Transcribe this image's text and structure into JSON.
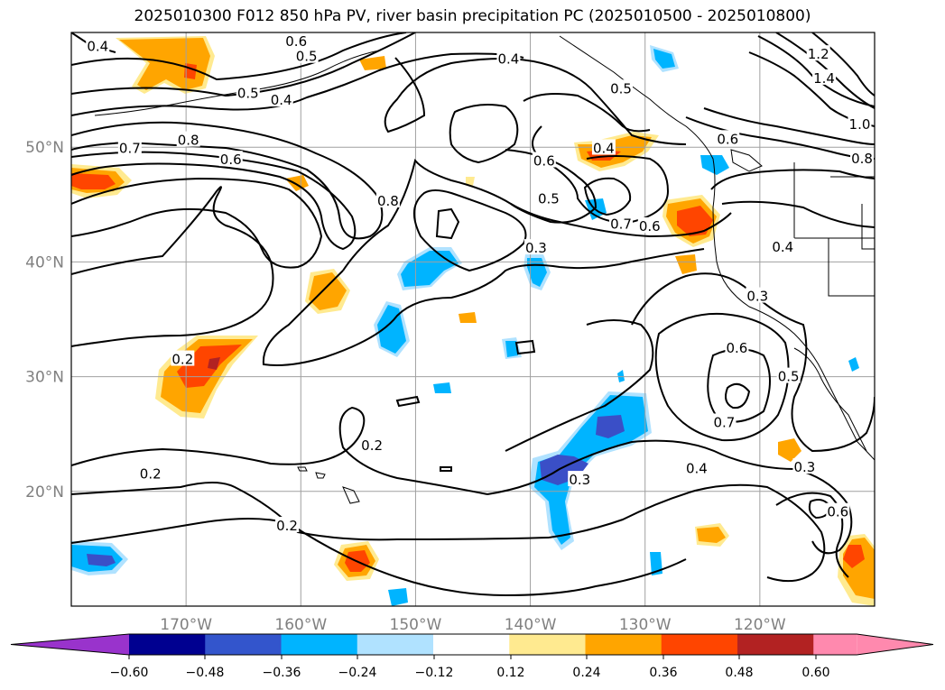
{
  "title": "2025010300 F012 850 hPa PV, river basin precipitation PC (2025010500 - 2025010800)",
  "map": {
    "projection": "equirectangular",
    "extent": {
      "lon_min": -180,
      "lon_max": -110,
      "lat_min": 10,
      "lat_max": 60
    },
    "grid_lines": true,
    "lat_labels": [
      "50°N",
      "40°N",
      "30°N",
      "20°N"
    ],
    "lat_values": [
      50,
      40,
      30,
      20
    ],
    "lon_labels": [
      "170°W",
      "160°W",
      "150°W",
      "140°W",
      "130°W",
      "120°W"
    ],
    "lon_values": [
      -170,
      -160,
      -150,
      -140,
      -130,
      -120
    ]
  },
  "contour_labels": [
    {
      "text": "0.4",
      "lon": -177.7,
      "lat": 58.8
    },
    {
      "text": "0.6",
      "lon": -160.4,
      "lat": 59.2
    },
    {
      "text": "0.5",
      "lon": -159.5,
      "lat": 57.9
    },
    {
      "text": "0.4",
      "lon": -141.9,
      "lat": 57.7
    },
    {
      "text": "0.5",
      "lon": -164.6,
      "lat": 54.7
    },
    {
      "text": "0.4",
      "lon": -161.7,
      "lat": 54.1
    },
    {
      "text": "0.5",
      "lon": -132.1,
      "lat": 55.1
    },
    {
      "text": "0.8",
      "lon": -169.8,
      "lat": 50.6
    },
    {
      "text": "0.7",
      "lon": -174.9,
      "lat": 49.9
    },
    {
      "text": "0.6",
      "lon": -166.1,
      "lat": 48.9
    },
    {
      "text": "0.6",
      "lon": -138.8,
      "lat": 48.8
    },
    {
      "text": "0.4",
      "lon": -133.6,
      "lat": 49.9
    },
    {
      "text": "0.6",
      "lon": -122.8,
      "lat": 50.7
    },
    {
      "text": "0.8",
      "lon": -111.1,
      "lat": 49.0
    },
    {
      "text": "0.8",
      "lon": -152.4,
      "lat": 45.3
    },
    {
      "text": "0.5",
      "lon": -138.4,
      "lat": 45.5
    },
    {
      "text": "0.7",
      "lon": -132.1,
      "lat": 43.3
    },
    {
      "text": "0.6",
      "lon": -129.6,
      "lat": 43.1
    },
    {
      "text": "0.3",
      "lon": -139.5,
      "lat": 41.2
    },
    {
      "text": "0.4",
      "lon": -118.0,
      "lat": 41.3
    },
    {
      "text": "0.3",
      "lon": -120.2,
      "lat": 37.0
    },
    {
      "text": "0.6",
      "lon": -122.0,
      "lat": 32.5
    },
    {
      "text": "0.5",
      "lon": -117.5,
      "lat": 30.0
    },
    {
      "text": "0.2",
      "lon": -170.3,
      "lat": 31.5
    },
    {
      "text": "0.7",
      "lon": -123.1,
      "lat": 26.0
    },
    {
      "text": "0.4",
      "lon": -125.5,
      "lat": 22.0
    },
    {
      "text": "0.2",
      "lon": -153.8,
      "lat": 24.0
    },
    {
      "text": "0.2",
      "lon": -173.1,
      "lat": 21.5
    },
    {
      "text": "0.3",
      "lon": -135.7,
      "lat": 21.0
    },
    {
      "text": "0.3",
      "lon": -116.1,
      "lat": 22.1
    },
    {
      "text": "0.6",
      "lon": -113.2,
      "lat": 18.2
    },
    {
      "text": "0.2",
      "lon": -161.2,
      "lat": 17.0
    },
    {
      "text": "1.4",
      "lon": -114.4,
      "lat": 56.0
    },
    {
      "text": "1.0",
      "lon": -111.3,
      "lat": 52.0
    },
    {
      "text": "1.2",
      "lon": -114.9,
      "lat": 58.1
    }
  ],
  "colorbar": {
    "tick_labels": [
      "−0.60",
      "−0.48",
      "−0.36",
      "−0.24",
      "−0.12",
      "0.12",
      "0.24",
      "0.36",
      "0.48",
      "0.60"
    ],
    "colors": [
      "#9933cc",
      "#000090",
      "#3355cc",
      "#00b4ff",
      "#b0e2ff",
      "#ffffff",
      "#ffea90",
      "#ffa500",
      "#ff4500",
      "#b22222",
      "#ff89ae"
    ]
  },
  "colors": {
    "neg_strong": "#3a4fc7",
    "neg_med": "#00b4ff",
    "neg_weak": "#b0e2ff",
    "pos_weak": "#ffea90",
    "pos_med": "#ffa500",
    "pos_strong": "#ff4500",
    "pos_max": "#b22222"
  }
}
